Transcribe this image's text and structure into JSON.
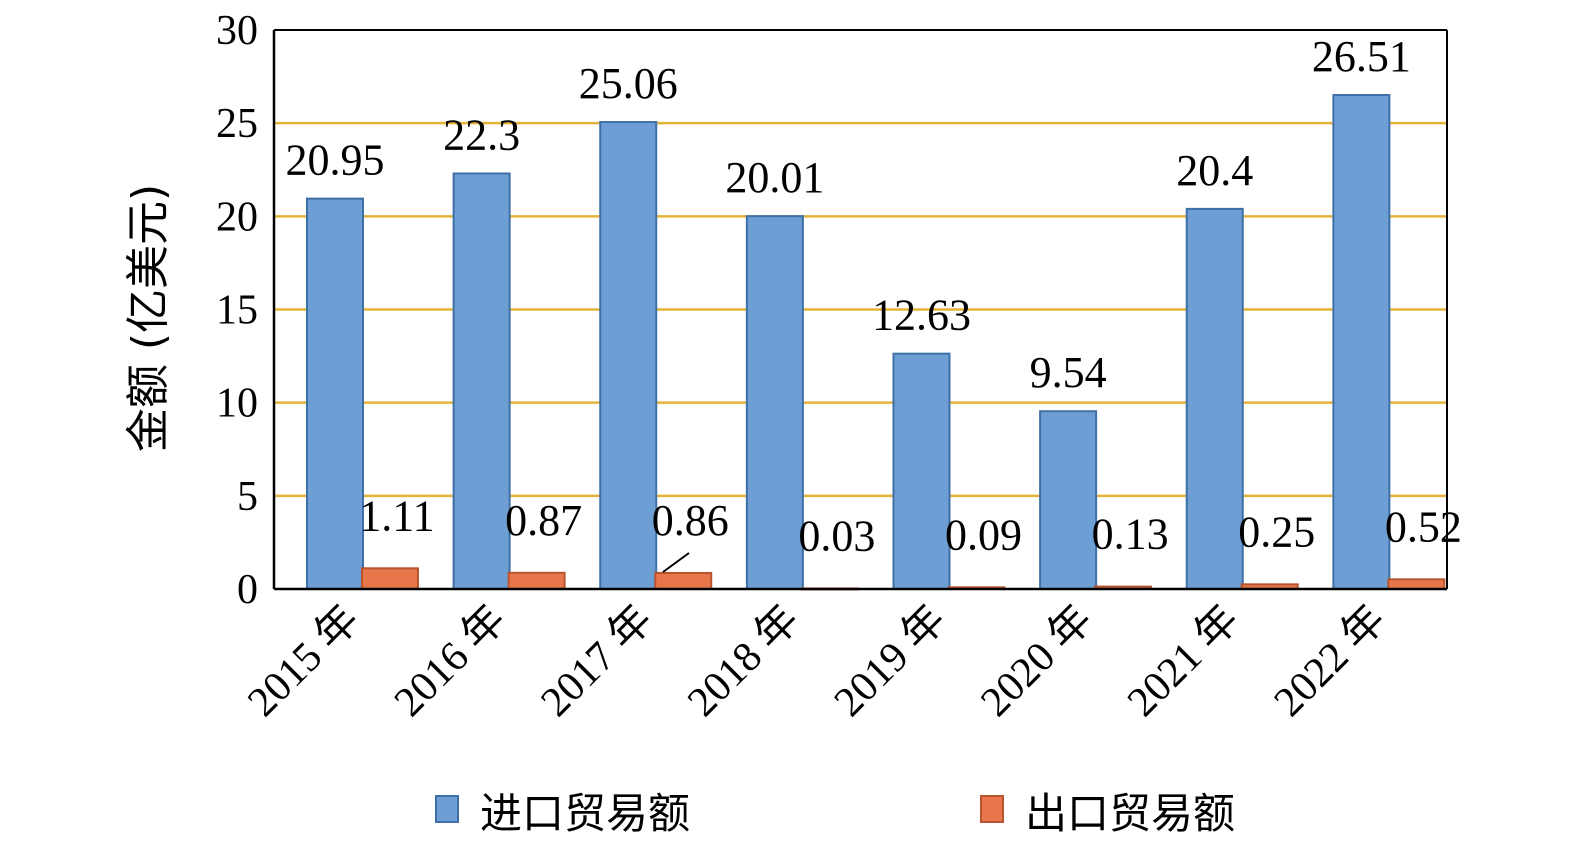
{
  "chart_data": {
    "type": "bar",
    "categories": [
      "2015 年",
      "2016 年",
      "2017 年",
      "2018 年",
      "2019 年",
      "2020 年",
      "2021 年",
      "2022 年"
    ],
    "series": [
      {
        "name": "进口贸易额",
        "color": "#6e9fd4",
        "values": [
          20.95,
          22.3,
          25.06,
          20.01,
          12.63,
          9.54,
          20.4,
          26.51
        ],
        "labels": [
          "20.95",
          "22.3",
          "25.06",
          "20.01",
          "12.63",
          "9.54",
          "20.4",
          "26.51"
        ]
      },
      {
        "name": "出口贸易额",
        "color": "#e8764b",
        "values": [
          1.11,
          0.87,
          0.86,
          0.03,
          0.09,
          0.13,
          0.25,
          0.52
        ],
        "labels": [
          "1.11",
          "0.87",
          "0.86",
          "0.03",
          "0.09",
          "0.13",
          "0.25",
          "0.52"
        ]
      }
    ],
    "title": "",
    "xlabel": "",
    "ylabel": "金额 (亿美元)",
    "ylim": [
      0,
      30
    ],
    "yticks": [
      "0",
      "5",
      "10",
      "15",
      "20",
      "25",
      "30"
    ],
    "grid": true,
    "grid_color": "#e6b33a",
    "legend_position": "bottom"
  }
}
